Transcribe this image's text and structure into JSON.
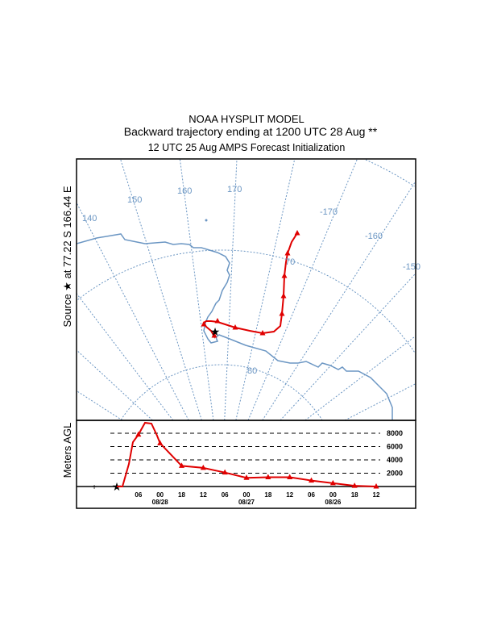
{
  "header": {
    "model": "NOAA HYSPLIT MODEL",
    "title": "Backward trajectory ending at 1200 UTC 28 Aug **",
    "subtitle": "12 UTC 25 Aug    AMPS  Forecast Initialization"
  },
  "map": {
    "source_label": "Source ★ at  77.22 S  166.44 E",
    "meridian_labels": [
      "140",
      "150",
      "160",
      "170",
      "-170",
      "-160",
      "-150"
    ],
    "latitude_labels": [
      "70",
      "80"
    ],
    "colors": {
      "grid": "#6b96c3",
      "trajectory": "#e00000",
      "source": "#000000"
    }
  },
  "profile": {
    "ylabel": "Meters AGL",
    "height_labels": [
      "8000",
      "6000",
      "4000",
      "2000"
    ],
    "time_labels": [
      "06",
      "00",
      "18",
      "12",
      "06",
      "00",
      "18",
      "12",
      "06",
      "00",
      "18",
      "12"
    ],
    "date_labels": [
      "08/28",
      "08/27",
      "08/26"
    ]
  },
  "chart_data": {
    "type": "line",
    "xlabel": "",
    "ylabel": "Meters AGL",
    "x": [
      "12 08/28",
      "06",
      "00 08/28",
      "18",
      "12",
      "06",
      "00 08/27",
      "18",
      "12",
      "06",
      "00 08/26",
      "18",
      "12"
    ],
    "values": [
      0,
      7800,
      6500,
      3100,
      2800,
      2100,
      1300,
      1400,
      1400,
      900,
      500,
      100,
      0
    ],
    "ylim": [
      0,
      9500
    ]
  }
}
